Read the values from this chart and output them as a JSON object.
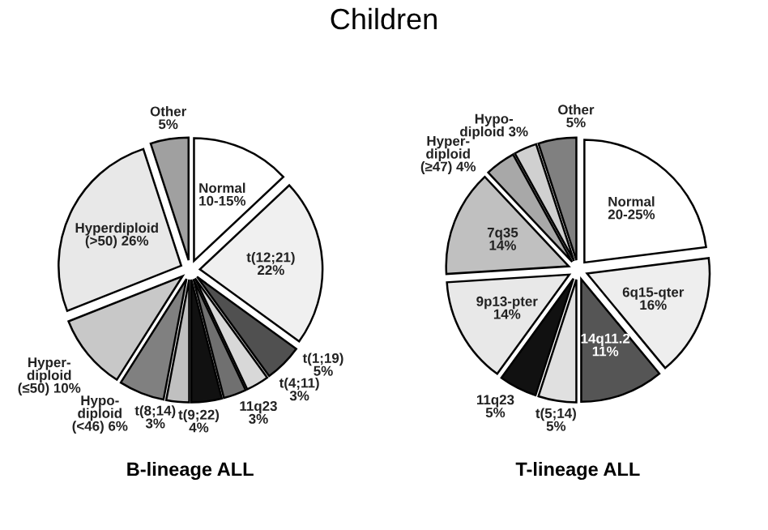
{
  "chart_data": [
    {
      "type": "pie",
      "title": "Children",
      "xlabel": "B-lineage ALL",
      "categories": [
        "Normal\n10-15%",
        "t(12;21)",
        "t(1;19)",
        "t(4;11)",
        "11q23",
        "t(9;22)",
        "t(8;14)",
        "Hypo-\ndiploid\n(<46)",
        "Hyper-\ndiploid\n(≤50)",
        "Hyperdiploid\n(>50)",
        "Other"
      ],
      "values": [
        13,
        22,
        5,
        3,
        3,
        4,
        3,
        6,
        10,
        26,
        5
      ],
      "value_labels": [
        null,
        "22%",
        "5%",
        "3%",
        "3%",
        "4%",
        "3%",
        "6%",
        "10%",
        "26%",
        "5%"
      ],
      "colors": [
        "#ffffff",
        "#f0f0f0",
        "#505050",
        "#d8d8d8",
        "#707070",
        "#111111",
        "#c0c0c0",
        "#808080",
        "#c8c8c8",
        "#e8e8e8",
        "#a0a0a0"
      ]
    },
    {
      "type": "pie",
      "xlabel": "T-lineage ALL",
      "categories": [
        "Normal\n20-25%",
        "6q15-qter",
        "14q11.2",
        "t(5;14)",
        "11q23",
        "9p13-pter",
        "7q35",
        "Hyper-\ndiploid\n(≥47)",
        "Hypo-\ndiploid",
        "Other"
      ],
      "values": [
        23,
        16,
        11,
        5,
        5,
        14,
        14,
        4,
        3,
        5
      ],
      "value_labels": [
        null,
        "16%",
        "11%",
        "5%",
        "5%",
        "14%",
        "14%",
        "4%",
        "3%",
        "5%"
      ],
      "colors": [
        "#ffffff",
        "#eeeeee",
        "#555555",
        "#e0e0e0",
        "#111111",
        "#e8e8e8",
        "#c0c0c0",
        "#a8a8a8",
        "#d0d0d0",
        "#808080"
      ]
    }
  ]
}
